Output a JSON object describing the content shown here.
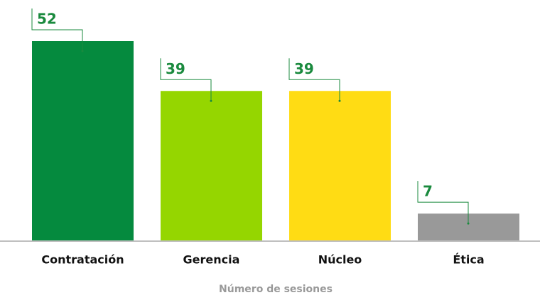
{
  "chart_data": {
    "type": "bar",
    "categories": [
      "Contratación",
      "Gerencia",
      "Núcleo",
      "Ética"
    ],
    "values": [
      52,
      39,
      39,
      7
    ],
    "colors": [
      "#058a3e",
      "#95d600",
      "#ffdc14",
      "#999999"
    ],
    "x_label": "Número de sesiones"
  }
}
